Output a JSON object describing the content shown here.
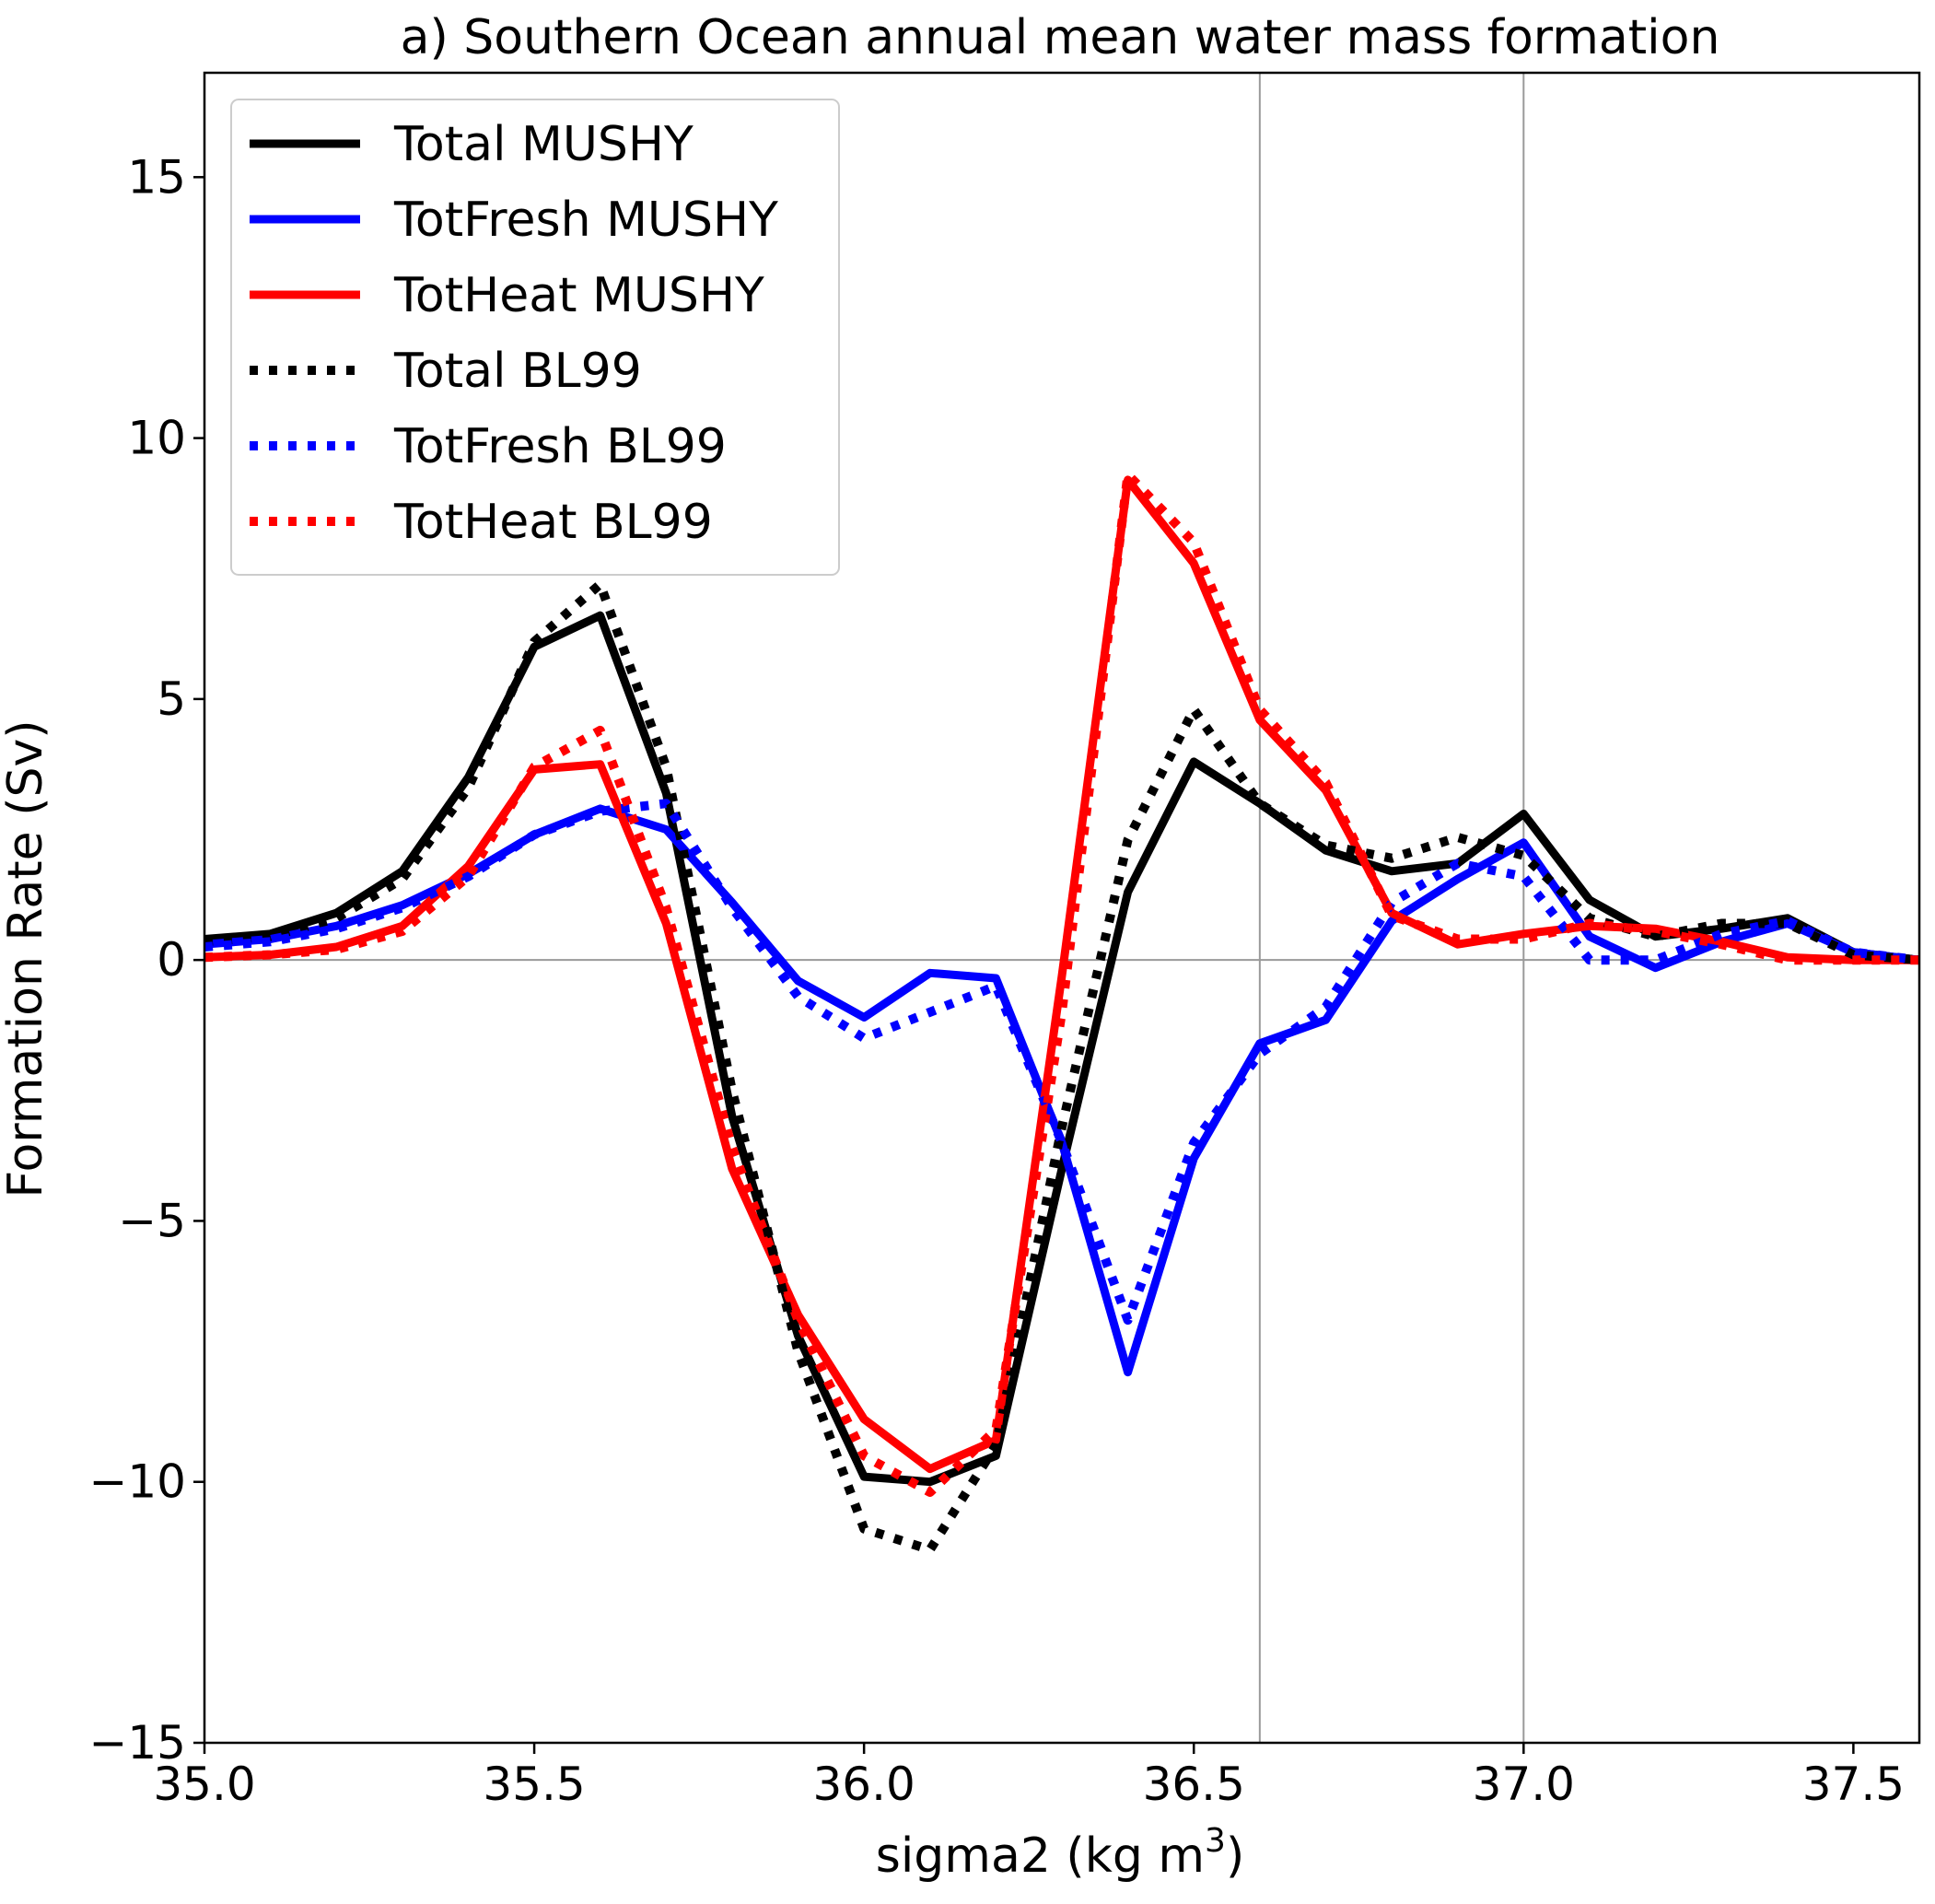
{
  "chart_data": {
    "type": "line",
    "title": "a) Southern Ocean annual mean water mass formation",
    "xlabel": "sigma2 (kg m",
    "xlabel_sup": "3",
    "xlabel_end": ")",
    "ylabel": "Formation Rate (Sv)",
    "xlim": [
      35.0,
      37.6
    ],
    "ylim": [
      -15,
      17
    ],
    "xticks": [
      35.0,
      35.5,
      36.0,
      36.5,
      37.0,
      37.5
    ],
    "xtick_labels": [
      "35.0",
      "35.5",
      "36.0",
      "36.5",
      "37.0",
      "37.5"
    ],
    "yticks": [
      -15,
      -10,
      -5,
      0,
      5,
      10,
      15
    ],
    "ytick_labels": [
      "−15",
      "−10",
      "−5",
      "0",
      "5",
      "10",
      "15"
    ],
    "vlines": [
      36.6,
      37.0
    ],
    "hline": 0,
    "grid": false,
    "legend_position": "top-left",
    "x": [
      35.0,
      35.1,
      35.2,
      35.3,
      35.4,
      35.5,
      35.6,
      35.7,
      35.8,
      35.9,
      36.0,
      36.1,
      36.2,
      36.3,
      36.4,
      36.5,
      36.6,
      36.7,
      36.8,
      36.9,
      37.0,
      37.1,
      37.2,
      37.3,
      37.4,
      37.5,
      37.6
    ],
    "series": [
      {
        "name": "Total MUSHY",
        "color": "#000000",
        "style": "solid",
        "values": [
          0.4,
          0.5,
          0.9,
          1.7,
          3.5,
          6.0,
          6.6,
          3.2,
          -3.0,
          -7.2,
          -9.9,
          -10.0,
          -9.5,
          -4.0,
          1.3,
          3.8,
          3.0,
          2.1,
          1.7,
          1.85,
          2.8,
          1.15,
          0.45,
          0.6,
          0.8,
          0.15,
          0.0
        ]
      },
      {
        "name": "TotFresh MUSHY",
        "color": "#0000ff",
        "style": "solid",
        "values": [
          0.3,
          0.4,
          0.65,
          1.05,
          1.65,
          2.4,
          2.9,
          2.5,
          1.1,
          -0.4,
          -1.1,
          -0.25,
          -0.35,
          -3.5,
          -7.9,
          -3.8,
          -1.6,
          -1.15,
          0.75,
          1.55,
          2.25,
          0.45,
          -0.15,
          0.35,
          0.7,
          0.15,
          0.0
        ]
      },
      {
        "name": "TotHeat MUSHY",
        "color": "#ff0000",
        "style": "solid",
        "values": [
          0.05,
          0.1,
          0.25,
          0.65,
          1.8,
          3.65,
          3.75,
          0.7,
          -4.0,
          -6.8,
          -8.8,
          -9.75,
          -9.2,
          -0.3,
          9.2,
          7.6,
          4.6,
          3.25,
          0.9,
          0.3,
          0.5,
          0.65,
          0.6,
          0.35,
          0.05,
          0.0,
          0.0
        ]
      },
      {
        "name": "Total BL99",
        "color": "#000000",
        "style": "dotted",
        "values": [
          0.35,
          0.45,
          0.8,
          1.55,
          3.3,
          6.1,
          7.2,
          3.7,
          -2.5,
          -7.5,
          -10.9,
          -11.3,
          -9.3,
          -3.2,
          2.3,
          4.8,
          3.0,
          2.2,
          1.95,
          2.35,
          2.0,
          0.8,
          0.45,
          0.7,
          0.7,
          0.1,
          0.0
        ]
      },
      {
        "name": "TotFresh BL99",
        "color": "#0000ff",
        "style": "dotted",
        "values": [
          0.25,
          0.35,
          0.6,
          1.0,
          1.6,
          2.4,
          2.85,
          3.0,
          1.0,
          -0.7,
          -1.5,
          -1.0,
          -0.5,
          -3.5,
          -6.9,
          -3.5,
          -1.8,
          -0.9,
          1.1,
          1.85,
          1.6,
          0.0,
          0.0,
          0.5,
          0.75,
          0.15,
          0.0
        ]
      },
      {
        "name": "TotHeat BL99",
        "color": "#ff0000",
        "style": "dotted",
        "values": [
          0.05,
          0.1,
          0.2,
          0.55,
          1.6,
          3.7,
          4.4,
          1.0,
          -3.6,
          -6.9,
          -9.5,
          -10.2,
          -9.0,
          -1.0,
          9.3,
          8.0,
          4.8,
          3.4,
          0.85,
          0.4,
          0.4,
          0.7,
          0.55,
          0.3,
          0.0,
          0.0,
          0.0
        ]
      }
    ]
  }
}
